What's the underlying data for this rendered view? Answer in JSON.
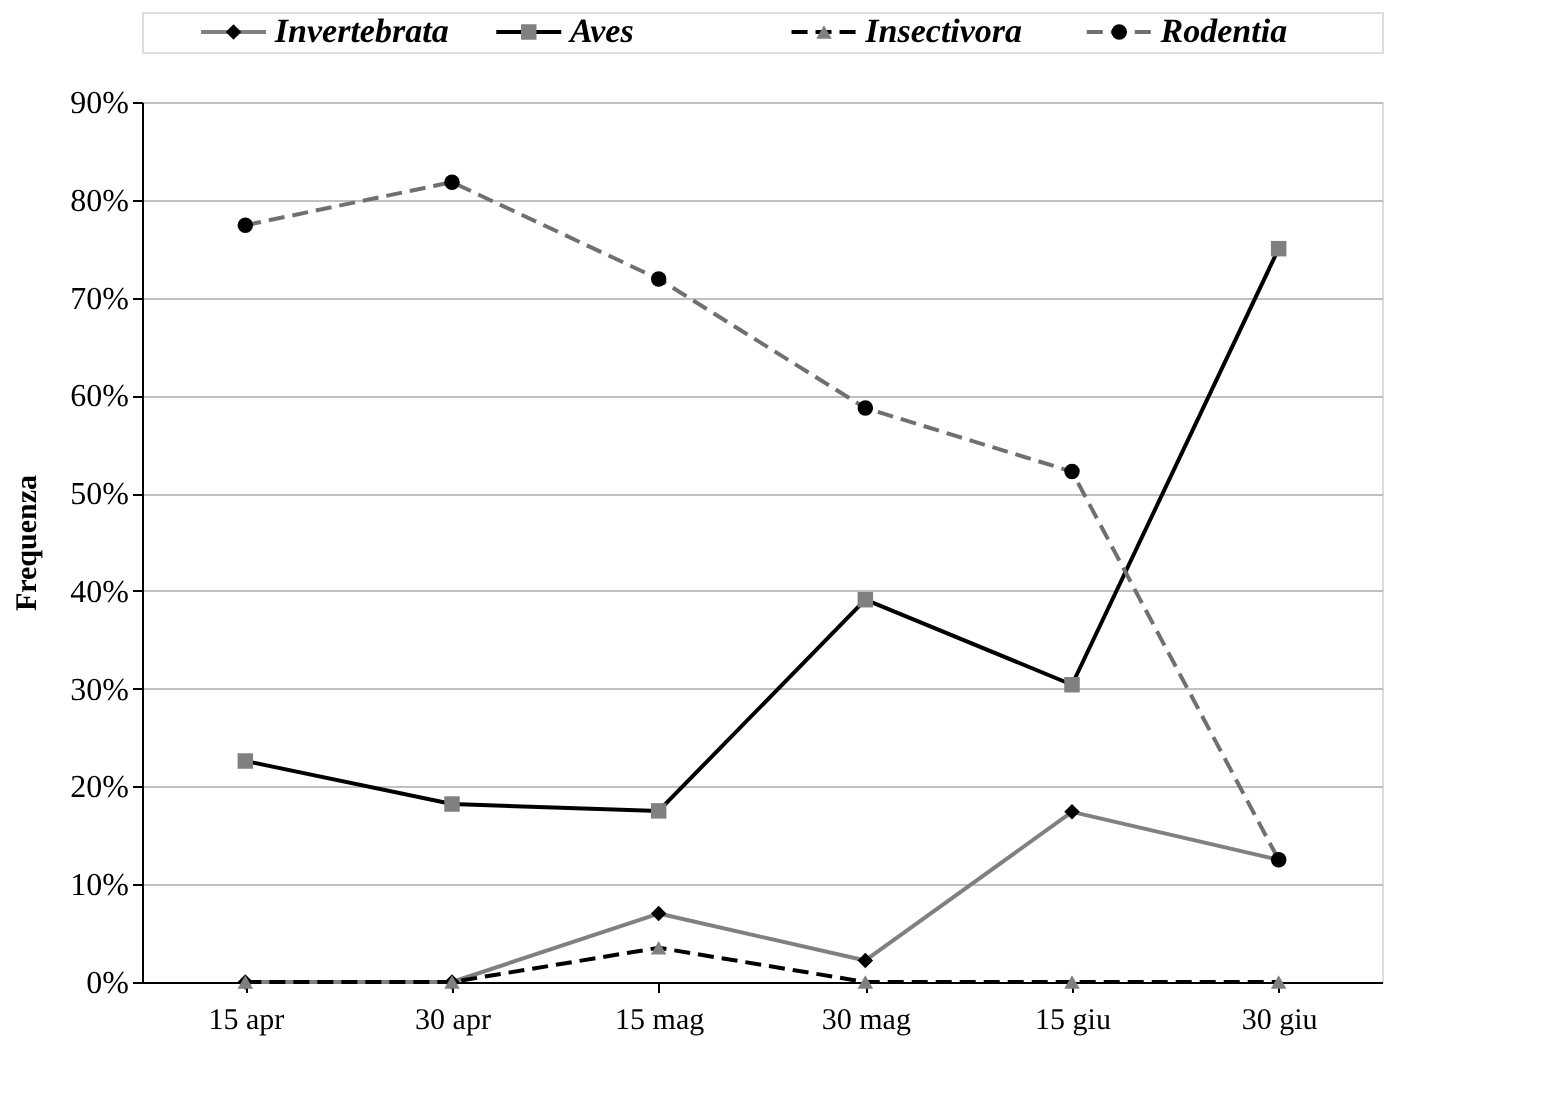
{
  "chart_data": {
    "type": "line",
    "ylabel": "Frequenza",
    "categories": [
      "15 apr",
      "30 apr",
      "15 mag",
      "30 mag",
      "15 giu",
      "30 giu"
    ],
    "series": [
      {
        "name": "Invertebrata",
        "color": "#808080",
        "colors": [
          "#000000",
          "#000000",
          "#000000",
          "#000000",
          "#000000",
          "#000000"
        ],
        "marker": "diamond",
        "line_style": "solid",
        "values": [
          0,
          0,
          7,
          2.2,
          17.4,
          12.5
        ]
      },
      {
        "name": "Aves",
        "color": "#000000",
        "colors": [
          "#808080",
          "#808080",
          "#808080",
          "#808080",
          "#808080",
          "#808080"
        ],
        "marker": "square",
        "line_style": "solid",
        "values": [
          22.6,
          18.2,
          17.5,
          39.1,
          30.4,
          75
        ]
      },
      {
        "name": "Insectivora",
        "color": "#000000",
        "colors": [
          "#808080",
          "#808080",
          "#808080",
          "#808080",
          "#808080",
          "#808080"
        ],
        "marker": "triangle",
        "line_style": "dashed",
        "values": [
          0,
          0,
          3.5,
          0,
          0,
          0
        ]
      },
      {
        "name": "Rodentia",
        "color": "#707070",
        "colors": [
          "#000000",
          "#000000",
          "#000000",
          "#000000",
          "#000000",
          "#000000"
        ],
        "marker": "circle",
        "line_style": "dashed",
        "values": [
          77.4,
          81.8,
          71.9,
          58.7,
          52.2,
          12.5
        ]
      }
    ],
    "ylim": [
      0,
      90
    ],
    "yticks": [
      {
        "value": 0,
        "label": "0%"
      },
      {
        "value": 10,
        "label": "10%"
      },
      {
        "value": 20,
        "label": "20%"
      },
      {
        "value": 30,
        "label": "30%"
      },
      {
        "value": 40,
        "label": "40%"
      },
      {
        "value": 50,
        "label": "50%"
      },
      {
        "value": 60,
        "label": "60%"
      },
      {
        "value": 70,
        "label": "70%"
      },
      {
        "value": 80,
        "label": "80%"
      },
      {
        "value": 90,
        "label": "90%"
      }
    ],
    "grid": "y",
    "legend": "top"
  }
}
